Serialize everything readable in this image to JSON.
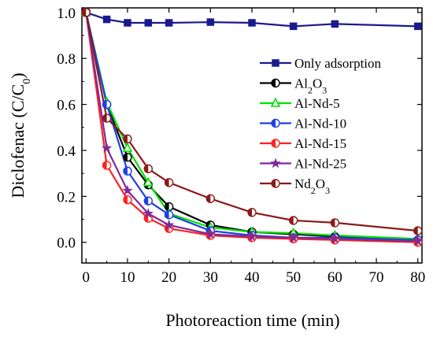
{
  "chart_data": {
    "type": "line",
    "xlabel": "Photoreaction time (min)",
    "ylabel": {
      "main": "Diclofenac (C/C",
      "sub": "0",
      "tail": ")"
    },
    "xlim": [
      -1,
      81
    ],
    "ylim": [
      -0.09,
      1.02
    ],
    "xticks": [
      0,
      10,
      20,
      30,
      40,
      50,
      60,
      70,
      80
    ],
    "yticks": [
      0.0,
      0.2,
      0.4,
      0.6,
      0.8,
      1.0
    ],
    "ytick_labels": [
      "0.0",
      "0.2",
      "0.4",
      "0.6",
      "0.8",
      "1.0"
    ],
    "grid": false,
    "legend_position": "right",
    "series": [
      {
        "name": "Only adsorption",
        "color": "#1a1a8f",
        "marker": "square",
        "x": [
          0,
          5,
          10,
          15,
          20,
          30,
          40,
          50,
          60,
          80
        ],
        "y": [
          1.0,
          0.97,
          0.955,
          0.955,
          0.955,
          0.958,
          0.955,
          0.94,
          0.95,
          0.94
        ]
      },
      {
        "name": "Al2O3",
        "label": "Al",
        "sub": "2",
        "label2": "O",
        "sub2": "3",
        "color": "#000000",
        "marker": "circle-half",
        "x": [
          0,
          5,
          10,
          15,
          20,
          30,
          40,
          50,
          60,
          80
        ],
        "y": [
          1.0,
          0.6,
          0.37,
          0.25,
          0.155,
          0.075,
          0.045,
          0.035,
          0.025,
          0.01
        ]
      },
      {
        "name": "Al-Nd-5",
        "color": "#00e000",
        "marker": "triangle",
        "x": [
          0,
          5,
          10,
          15,
          20,
          30,
          40,
          50,
          60,
          80
        ],
        "y": [
          1.0,
          0.61,
          0.41,
          0.26,
          0.125,
          0.065,
          0.045,
          0.04,
          0.03,
          0.015
        ]
      },
      {
        "name": "Al-Nd-10",
        "color": "#1f3fe6",
        "marker": "circle-half",
        "x": [
          0,
          5,
          10,
          15,
          20,
          30,
          40,
          50,
          60,
          80
        ],
        "y": [
          1.0,
          0.6,
          0.31,
          0.18,
          0.12,
          0.05,
          0.03,
          0.02,
          0.02,
          0.01
        ]
      },
      {
        "name": "Al-Nd-15",
        "color": "#ff2020",
        "marker": "circle-half",
        "x": [
          0,
          5,
          10,
          15,
          20,
          30,
          40,
          50,
          60,
          80
        ],
        "y": [
          1.0,
          0.335,
          0.185,
          0.105,
          0.06,
          0.03,
          0.02,
          0.015,
          0.01,
          0.0
        ]
      },
      {
        "name": "Al-Nd-25",
        "color": "#7d2a9a",
        "marker": "star",
        "x": [
          0,
          5,
          10,
          15,
          20,
          30,
          40,
          50,
          60,
          80
        ],
        "y": [
          1.0,
          0.41,
          0.225,
          0.125,
          0.075,
          0.035,
          0.025,
          0.02,
          0.015,
          0.005
        ]
      },
      {
        "name": "Nd2O3",
        "label": "Nd",
        "sub": "2",
        "label2": "O",
        "sub2": "3",
        "color": "#8b1a1a",
        "marker": "circle-half",
        "x": [
          0,
          5,
          10,
          15,
          20,
          30,
          40,
          50,
          60,
          80
        ],
        "y": [
          1.0,
          0.54,
          0.45,
          0.32,
          0.26,
          0.19,
          0.13,
          0.095,
          0.085,
          0.05
        ]
      }
    ]
  }
}
